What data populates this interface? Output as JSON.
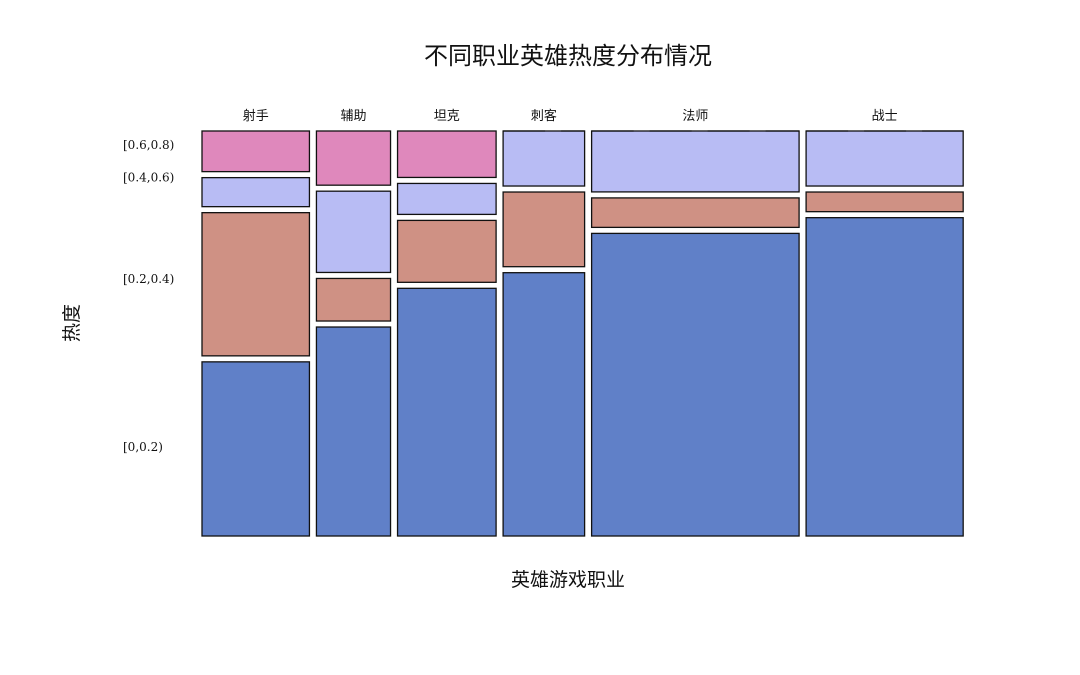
{
  "chart_data": {
    "type": "mosaic",
    "title": "不同职业英雄热度分布情况",
    "xlabel": "英雄游戏职业",
    "ylabel": "热度",
    "categories": [
      "射手",
      "辅助",
      "坦克",
      "刺客",
      "法师",
      "战士"
    ],
    "category_shares": [
      0.145,
      0.1,
      0.133,
      0.11,
      0.28,
      0.212
    ],
    "levels": [
      "[0,0.2)",
      "[0.2,0.4)",
      "[0.4,0.6)",
      "[0.6,0.8)"
    ],
    "series": [
      {
        "name": "[0,0.2)",
        "values": [
          0.45,
          0.54,
          0.64,
          0.67,
          0.77,
          0.81
        ]
      },
      {
        "name": "[0.2,0.4)",
        "values": [
          0.37,
          0.11,
          0.16,
          0.19,
          0.075,
          0.05
        ]
      },
      {
        "name": "[0.4,0.6)",
        "values": [
          0.075,
          0.21,
          0.08,
          0.14,
          0.155,
          0.14
        ]
      },
      {
        "name": "[0.6,0.8)",
        "values": [
          0.105,
          0.14,
          0.12,
          0,
          0,
          0
        ]
      }
    ],
    "level_label_positions": [
      0.22,
      0.635,
      0.885,
      0.965
    ],
    "colors": {
      "[0,0.2)": "#6080c8",
      "[0.2,0.4)": "#cf9184",
      "[0.4,0.6)": "#b8bcf4",
      "[0.6,0.8)": "#df88bc"
    },
    "legend": "none",
    "grid": false
  }
}
